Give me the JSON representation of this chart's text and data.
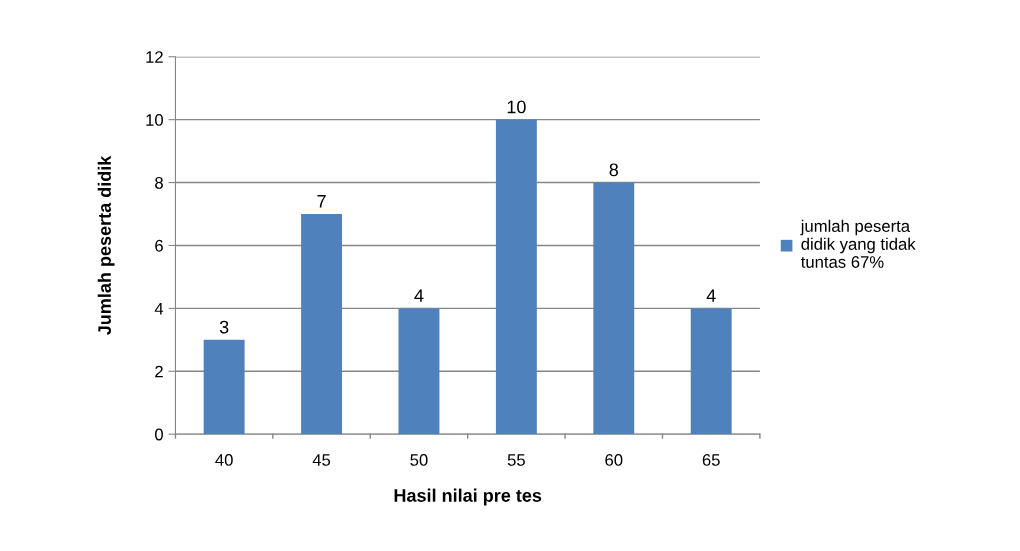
{
  "chart_data": {
    "type": "bar",
    "xlabel": "Hasil nilai pre tes",
    "ylabel": "Jumlah peserta didik",
    "categories": [
      "40",
      "45",
      "50",
      "55",
      "60",
      "65"
    ],
    "series": [
      {
        "name": "jumlah peserta\ndidik yang tidak\ntuntas 67%",
        "color": "#4f81bd",
        "values": [
          3,
          7,
          4,
          10,
          8,
          4
        ]
      }
    ],
    "ylim": [
      0,
      12
    ],
    "yticks": [
      0,
      2,
      4,
      6,
      8,
      10,
      12
    ],
    "grid": "y",
    "legend": "right",
    "data_labels": true
  }
}
